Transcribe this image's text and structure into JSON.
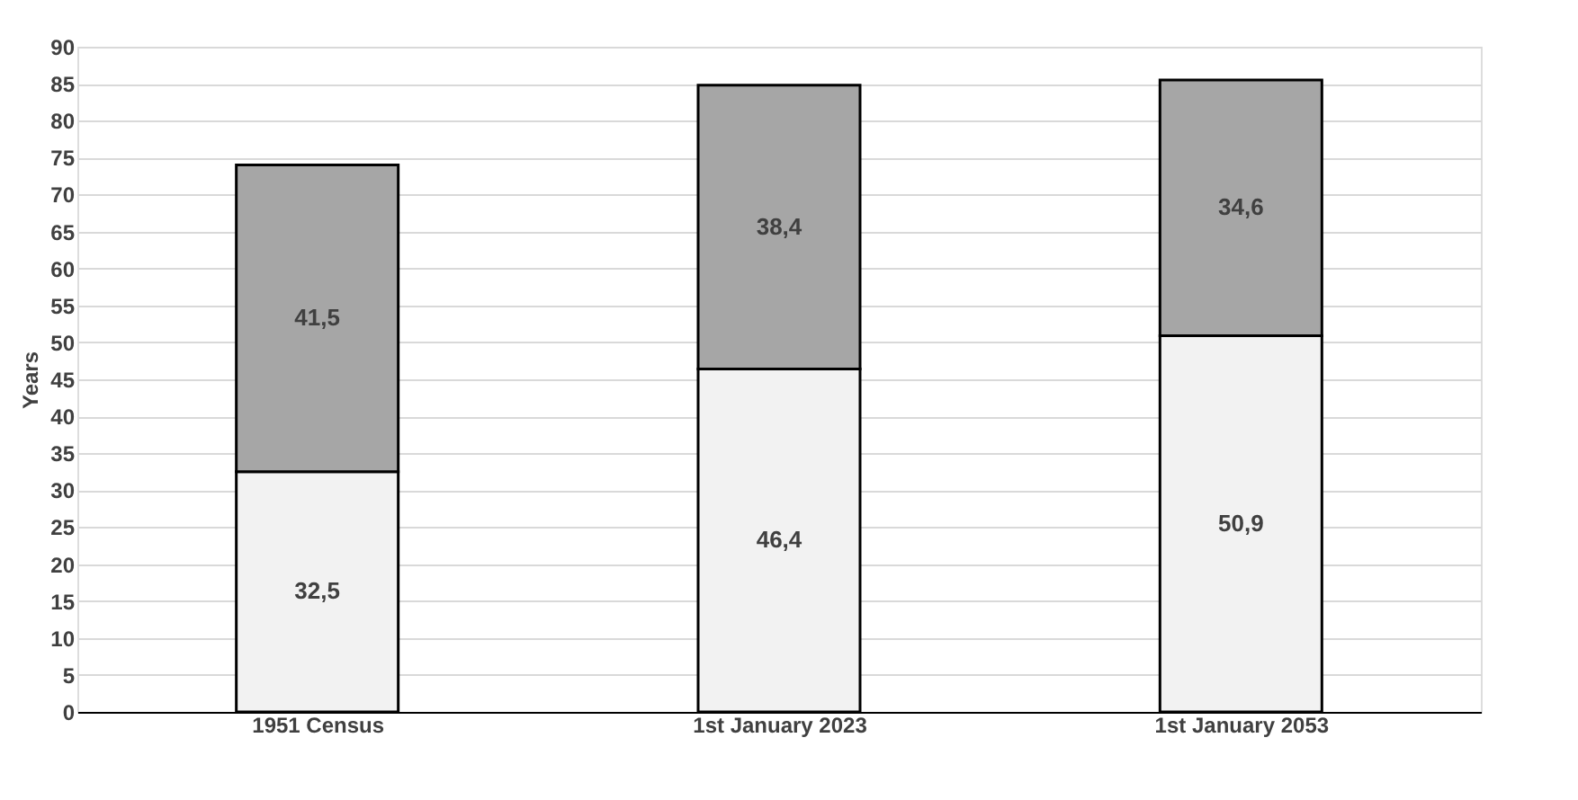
{
  "chart_data": {
    "type": "bar",
    "stacked": true,
    "ylabel": "Years",
    "categories": [
      "1951 Census",
      "1st January 2023",
      "1st January 2053"
    ],
    "series": [
      {
        "color": "#f2f2f2",
        "values": [
          32.5,
          46.4,
          50.9
        ],
        "value_labels": [
          "32,5",
          "46,4",
          "50,9"
        ]
      },
      {
        "color": "#a6a6a6",
        "values": [
          41.5,
          38.4,
          34.6
        ],
        "value_labels": [
          "41,5",
          "38,4",
          "34,6"
        ]
      }
    ],
    "ylim": [
      0,
      90
    ],
    "yticks": [
      0,
      5,
      10,
      15,
      20,
      25,
      30,
      35,
      40,
      45,
      50,
      55,
      60,
      65,
      70,
      75,
      80,
      85,
      90
    ],
    "grid": "y"
  }
}
